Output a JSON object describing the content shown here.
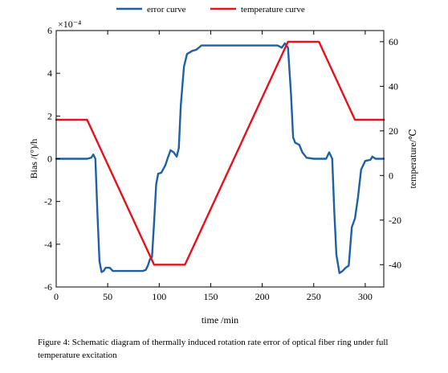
{
  "chart_data": {
    "type": "line",
    "legend_position": "top",
    "grid": false,
    "x": {
      "label": "time /min",
      "lim": [
        0,
        318
      ],
      "ticks": [
        0,
        50,
        100,
        150,
        200,
        250,
        300
      ]
    },
    "y_left": {
      "label": "Bias /(°)/h",
      "lim": [
        -6,
        6
      ],
      "ticks": [
        -6,
        -4,
        -2,
        0,
        2,
        4,
        6
      ],
      "multiplier": "×10⁻⁴"
    },
    "y_right": {
      "label": "temperature/℃",
      "lim": [
        -50,
        65
      ],
      "ticks": [
        -40,
        -20,
        0,
        20,
        40,
        60
      ]
    },
    "series": [
      {
        "name": "error curve",
        "color": "#1f5fa8",
        "axis": "left",
        "points": [
          [
            0,
            0
          ],
          [
            30,
            0
          ],
          [
            34,
            0.05
          ],
          [
            36,
            0.2
          ],
          [
            38,
            0
          ],
          [
            40,
            -2.5
          ],
          [
            42,
            -4.8
          ],
          [
            44,
            -5.3
          ],
          [
            46,
            -5.25
          ],
          [
            48,
            -5.1
          ],
          [
            52,
            -5.1
          ],
          [
            55,
            -5.25
          ],
          [
            62,
            -5.25
          ],
          [
            75,
            -5.25
          ],
          [
            84,
            -5.25
          ],
          [
            87,
            -5.2
          ],
          [
            89,
            -5.0
          ],
          [
            91,
            -4.7
          ],
          [
            93,
            -4.6
          ],
          [
            95,
            -3.0
          ],
          [
            97,
            -1.2
          ],
          [
            99,
            -0.7
          ],
          [
            102,
            -0.65
          ],
          [
            106,
            -0.3
          ],
          [
            108,
            0
          ],
          [
            111,
            0.4
          ],
          [
            114,
            0.3
          ],
          [
            117,
            0.1
          ],
          [
            119,
            0.5
          ],
          [
            121,
            2.5
          ],
          [
            124,
            4.3
          ],
          [
            127,
            4.9
          ],
          [
            132,
            5.05
          ],
          [
            136,
            5.1
          ],
          [
            141,
            5.3
          ],
          [
            150,
            5.3
          ],
          [
            200,
            5.3
          ],
          [
            215,
            5.3
          ],
          [
            219,
            5.2
          ],
          [
            222,
            5.4
          ],
          [
            225,
            5.2
          ],
          [
            228,
            3.0
          ],
          [
            230,
            1.0
          ],
          [
            232,
            0.75
          ],
          [
            236,
            0.65
          ],
          [
            239,
            0.3
          ],
          [
            243,
            0.05
          ],
          [
            250,
            0
          ],
          [
            262,
            0
          ],
          [
            265,
            0.3
          ],
          [
            268,
            0
          ],
          [
            270,
            -2.5
          ],
          [
            272,
            -4.5
          ],
          [
            275,
            -5.35
          ],
          [
            278,
            -5.25
          ],
          [
            281,
            -5.1
          ],
          [
            284,
            -5.0
          ],
          [
            287,
            -3.2
          ],
          [
            290,
            -2.8
          ],
          [
            293,
            -1.8
          ],
          [
            296,
            -0.5
          ],
          [
            300,
            -0.1
          ],
          [
            305,
            -0.05
          ],
          [
            307,
            0.1
          ],
          [
            310,
            0
          ],
          [
            318,
            0
          ]
        ]
      },
      {
        "name": "temperature curve",
        "color": "#e8101a",
        "axis": "right",
        "points": [
          [
            0,
            25
          ],
          [
            30,
            25
          ],
          [
            95,
            -40
          ],
          [
            125,
            -40
          ],
          [
            225,
            60
          ],
          [
            255,
            60
          ],
          [
            290,
            25
          ],
          [
            318,
            25
          ]
        ]
      }
    ]
  },
  "caption": "Figure 4: Schematic diagram of thermally induced rotation rate error of optical fiber ring under full temperature excitation"
}
